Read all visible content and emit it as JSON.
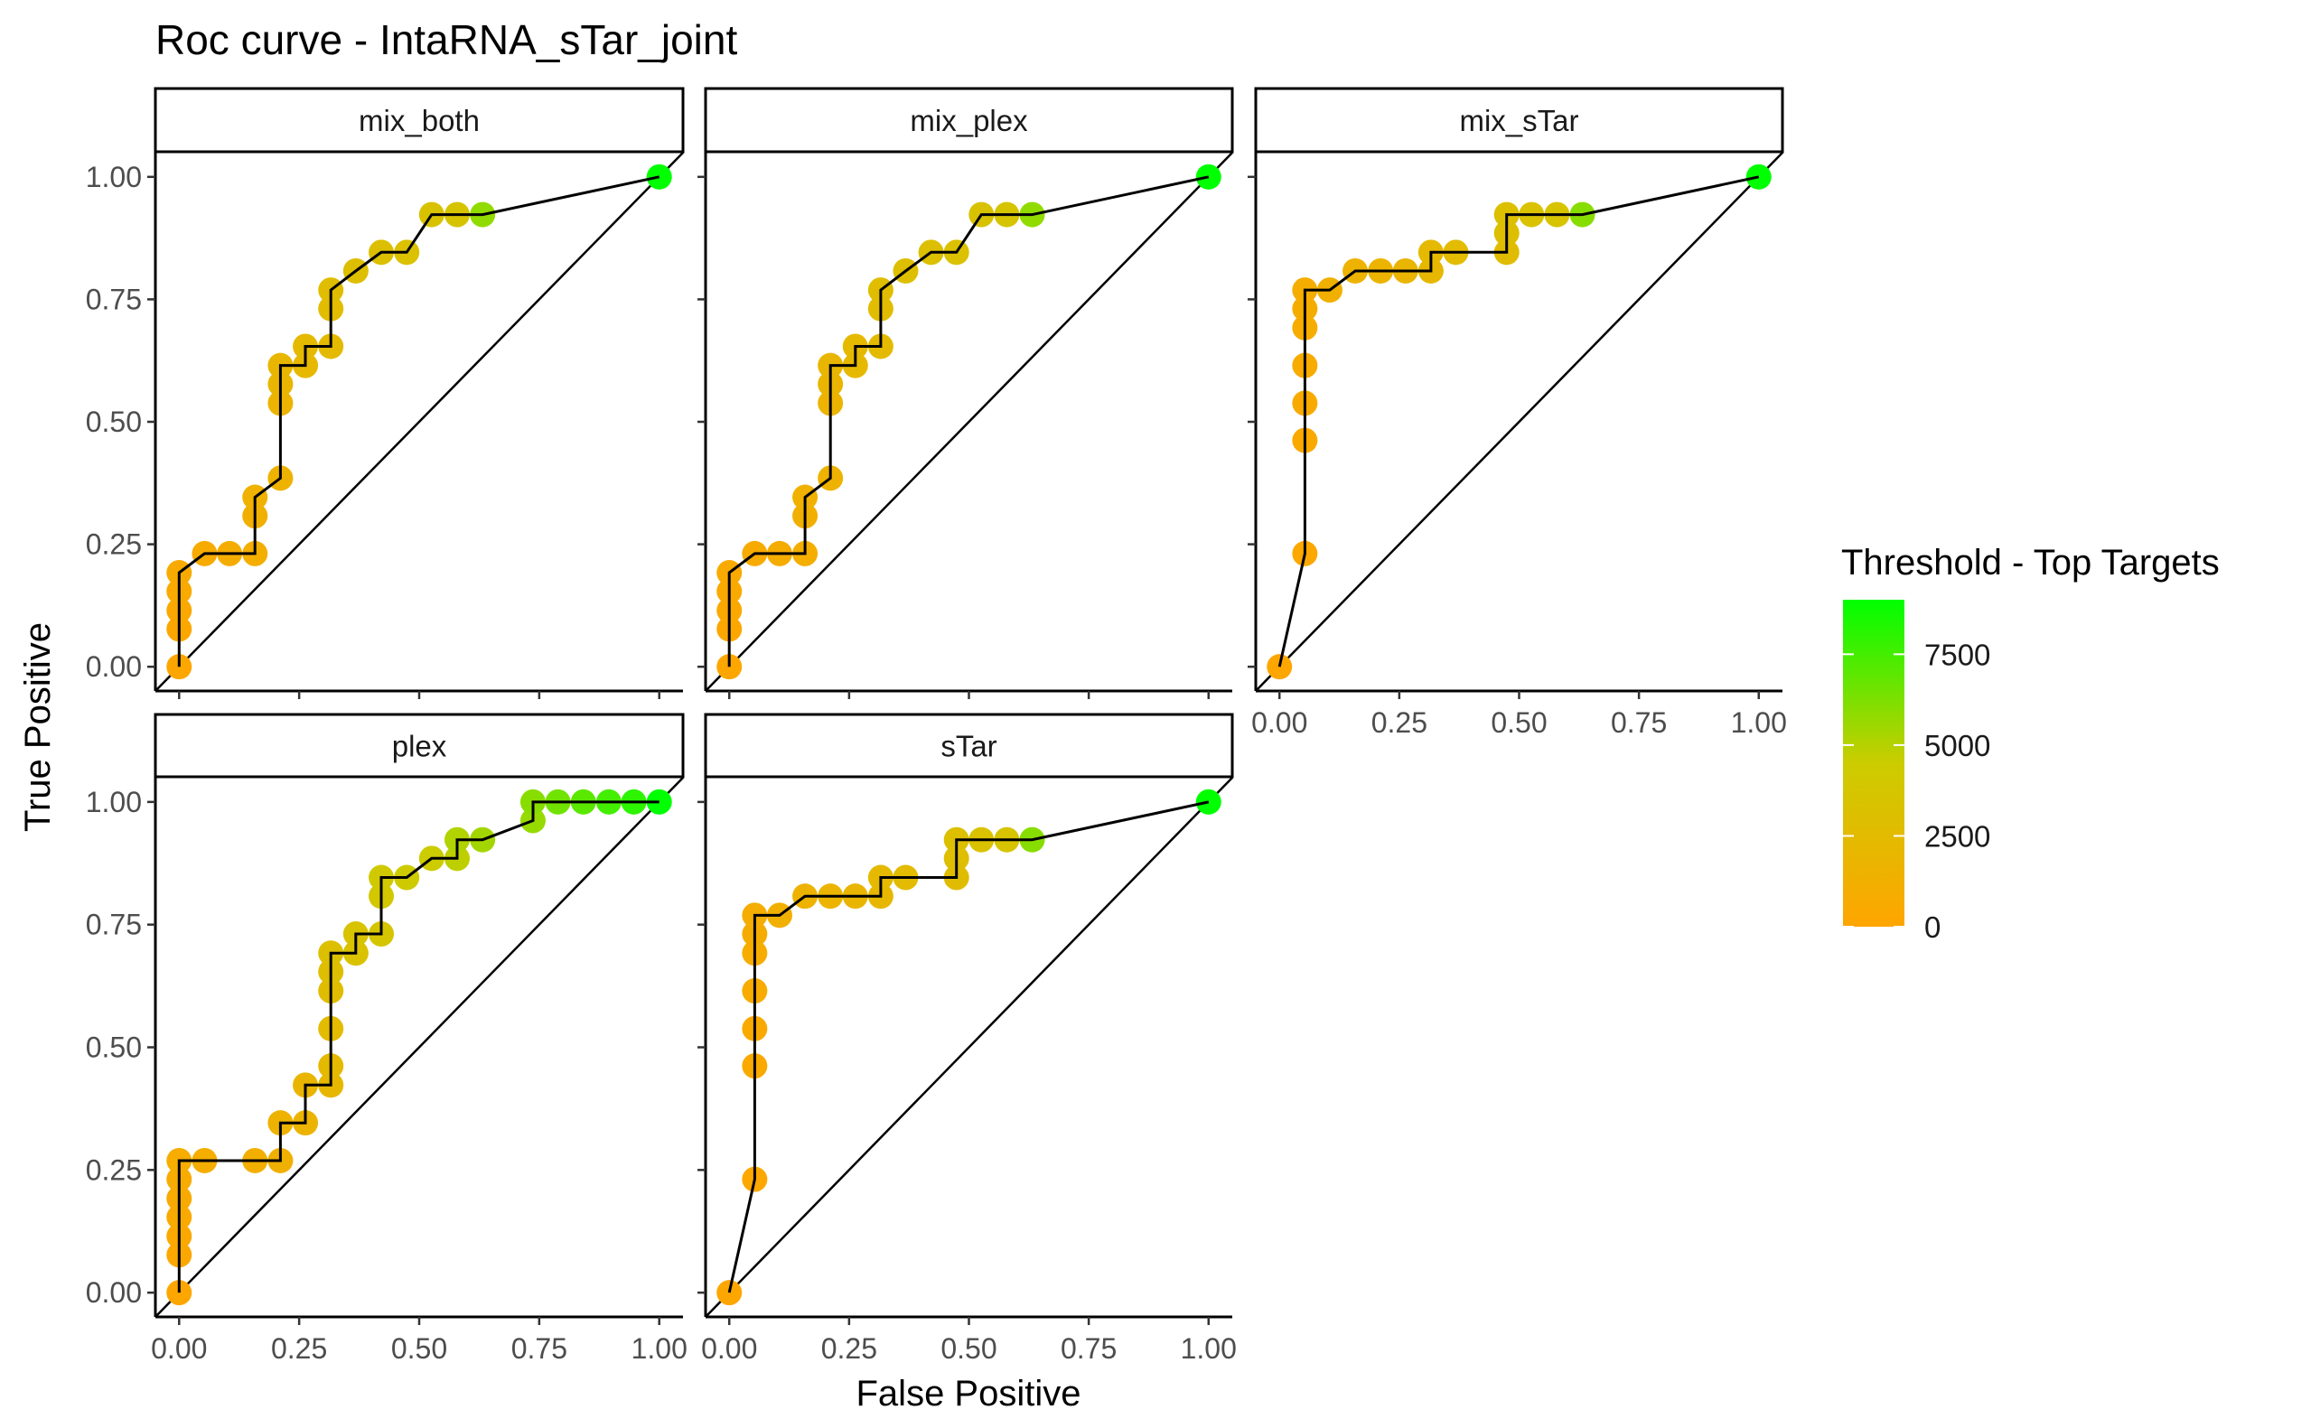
{
  "chart_data": {
    "type": "scatter",
    "title": "Roc curve - IntaRNA_sTar_joint",
    "xlabel": "False Positive",
    "ylabel": "True Positive",
    "xlim": [
      0,
      1
    ],
    "ylim": [
      0,
      1
    ],
    "x_ticks": [
      "0.00",
      "0.25",
      "0.50",
      "0.75",
      "1.00"
    ],
    "y_ticks": [
      "0.00",
      "0.25",
      "0.50",
      "0.75",
      "1.00"
    ],
    "grid": false,
    "legend": {
      "title": "Threshold - Top Targets",
      "position": "right",
      "ticks": [
        "0",
        "2500",
        "5000",
        "7500"
      ],
      "tick_values": [
        0,
        2500,
        5000,
        7500
      ],
      "range": [
        0,
        9000
      ],
      "color_low": "#FFA500",
      "color_mid": "#CCCC00",
      "color_high": "#00FF00"
    },
    "diagonal_reference": true,
    "panels": [
      {
        "name": "mix_both",
        "points": [
          [
            0.0,
            0.0,
            150
          ],
          [
            0.0,
            0.077,
            250
          ],
          [
            0.0,
            0.115,
            350
          ],
          [
            0.0,
            0.154,
            450
          ],
          [
            0.0,
            0.192,
            550
          ],
          [
            0.053,
            0.231,
            700
          ],
          [
            0.105,
            0.231,
            850
          ],
          [
            0.158,
            0.231,
            1000
          ],
          [
            0.158,
            0.308,
            1200
          ],
          [
            0.158,
            0.346,
            1350
          ],
          [
            0.211,
            0.385,
            1500
          ],
          [
            0.211,
            0.538,
            1700
          ],
          [
            0.211,
            0.577,
            1850
          ],
          [
            0.211,
            0.615,
            2000
          ],
          [
            0.263,
            0.615,
            2150
          ],
          [
            0.263,
            0.654,
            2300
          ],
          [
            0.316,
            0.654,
            2450
          ],
          [
            0.316,
            0.731,
            2600
          ],
          [
            0.316,
            0.769,
            2750
          ],
          [
            0.368,
            0.808,
            2900
          ],
          [
            0.421,
            0.846,
            3050
          ],
          [
            0.474,
            0.846,
            3200
          ],
          [
            0.526,
            0.923,
            3400
          ],
          [
            0.579,
            0.923,
            3600
          ],
          [
            0.632,
            0.923,
            5800
          ],
          [
            1.0,
            1.0,
            9000
          ]
        ],
        "path": [
          [
            0,
            0
          ],
          [
            0,
            0.192
          ],
          [
            0.053,
            0.231
          ],
          [
            0.158,
            0.231
          ],
          [
            0.158,
            0.346
          ],
          [
            0.211,
            0.385
          ],
          [
            0.211,
            0.615
          ],
          [
            0.263,
            0.615
          ],
          [
            0.263,
            0.654
          ],
          [
            0.316,
            0.654
          ],
          [
            0.316,
            0.769
          ],
          [
            0.368,
            0.808
          ],
          [
            0.421,
            0.846
          ],
          [
            0.474,
            0.846
          ],
          [
            0.526,
            0.923
          ],
          [
            0.632,
            0.923
          ],
          [
            1.0,
            1.0
          ]
        ]
      },
      {
        "name": "mix_plex",
        "points": [
          [
            0.0,
            0.0,
            150
          ],
          [
            0.0,
            0.077,
            250
          ],
          [
            0.0,
            0.115,
            350
          ],
          [
            0.0,
            0.154,
            450
          ],
          [
            0.0,
            0.192,
            550
          ],
          [
            0.053,
            0.231,
            700
          ],
          [
            0.105,
            0.231,
            850
          ],
          [
            0.158,
            0.231,
            1000
          ],
          [
            0.158,
            0.308,
            1200
          ],
          [
            0.158,
            0.346,
            1350
          ],
          [
            0.211,
            0.385,
            1500
          ],
          [
            0.211,
            0.538,
            1700
          ],
          [
            0.211,
            0.577,
            1850
          ],
          [
            0.211,
            0.615,
            2000
          ],
          [
            0.263,
            0.615,
            2150
          ],
          [
            0.263,
            0.654,
            2300
          ],
          [
            0.316,
            0.654,
            2450
          ],
          [
            0.316,
            0.731,
            2600
          ],
          [
            0.316,
            0.769,
            2750
          ],
          [
            0.368,
            0.808,
            2900
          ],
          [
            0.421,
            0.846,
            3050
          ],
          [
            0.474,
            0.846,
            3200
          ],
          [
            0.526,
            0.923,
            3400
          ],
          [
            0.579,
            0.923,
            3600
          ],
          [
            0.632,
            0.923,
            5800
          ],
          [
            1.0,
            1.0,
            9000
          ]
        ],
        "path": [
          [
            0,
            0
          ],
          [
            0,
            0.192
          ],
          [
            0.053,
            0.231
          ],
          [
            0.158,
            0.231
          ],
          [
            0.158,
            0.346
          ],
          [
            0.211,
            0.385
          ],
          [
            0.211,
            0.615
          ],
          [
            0.263,
            0.615
          ],
          [
            0.263,
            0.654
          ],
          [
            0.316,
            0.654
          ],
          [
            0.316,
            0.769
          ],
          [
            0.368,
            0.808
          ],
          [
            0.421,
            0.846
          ],
          [
            0.474,
            0.846
          ],
          [
            0.526,
            0.923
          ],
          [
            0.632,
            0.923
          ],
          [
            1.0,
            1.0
          ]
        ]
      },
      {
        "name": "mix_sTar",
        "points": [
          [
            0.0,
            0.0,
            100
          ],
          [
            0.053,
            0.231,
            300
          ],
          [
            0.053,
            0.462,
            450
          ],
          [
            0.053,
            0.538,
            550
          ],
          [
            0.053,
            0.615,
            650
          ],
          [
            0.053,
            0.692,
            750
          ],
          [
            0.053,
            0.731,
            850
          ],
          [
            0.053,
            0.769,
            950
          ],
          [
            0.105,
            0.769,
            1200
          ],
          [
            0.158,
            0.808,
            1500
          ],
          [
            0.211,
            0.808,
            1700
          ],
          [
            0.263,
            0.808,
            1900
          ],
          [
            0.316,
            0.808,
            2100
          ],
          [
            0.316,
            0.846,
            2300
          ],
          [
            0.368,
            0.846,
            2500
          ],
          [
            0.474,
            0.846,
            2700
          ],
          [
            0.474,
            0.885,
            2900
          ],
          [
            0.474,
            0.923,
            3100
          ],
          [
            0.526,
            0.923,
            3300
          ],
          [
            0.579,
            0.923,
            3500
          ],
          [
            0.632,
            0.923,
            6000
          ],
          [
            1.0,
            1.0,
            9000
          ]
        ],
        "path": [
          [
            0,
            0
          ],
          [
            0.053,
            0.231
          ],
          [
            0.053,
            0.769
          ],
          [
            0.105,
            0.769
          ],
          [
            0.158,
            0.808
          ],
          [
            0.316,
            0.808
          ],
          [
            0.316,
            0.846
          ],
          [
            0.474,
            0.846
          ],
          [
            0.474,
            0.923
          ],
          [
            0.632,
            0.923
          ],
          [
            1.0,
            1.0
          ]
        ]
      },
      {
        "name": "plex",
        "points": [
          [
            0.0,
            0.0,
            150
          ],
          [
            0.0,
            0.077,
            250
          ],
          [
            0.0,
            0.115,
            350
          ],
          [
            0.0,
            0.154,
            450
          ],
          [
            0.0,
            0.192,
            550
          ],
          [
            0.0,
            0.231,
            650
          ],
          [
            0.0,
            0.269,
            750
          ],
          [
            0.053,
            0.269,
            900
          ],
          [
            0.158,
            0.269,
            1100
          ],
          [
            0.211,
            0.269,
            1300
          ],
          [
            0.211,
            0.346,
            1500
          ],
          [
            0.263,
            0.346,
            1700
          ],
          [
            0.263,
            0.423,
            1900
          ],
          [
            0.316,
            0.423,
            2100
          ],
          [
            0.316,
            0.462,
            2300
          ],
          [
            0.316,
            0.538,
            2500
          ],
          [
            0.316,
            0.615,
            2700
          ],
          [
            0.316,
            0.654,
            2900
          ],
          [
            0.316,
            0.692,
            3100
          ],
          [
            0.368,
            0.692,
            3300
          ],
          [
            0.368,
            0.731,
            3500
          ],
          [
            0.421,
            0.731,
            3700
          ],
          [
            0.421,
            0.808,
            3900
          ],
          [
            0.421,
            0.846,
            4100
          ],
          [
            0.474,
            0.846,
            4300
          ],
          [
            0.526,
            0.885,
            4500
          ],
          [
            0.579,
            0.885,
            4800
          ],
          [
            0.579,
            0.923,
            5100
          ],
          [
            0.632,
            0.923,
            5400
          ],
          [
            0.737,
            0.962,
            5700
          ],
          [
            0.737,
            1.0,
            6000
          ],
          [
            0.789,
            1.0,
            6500
          ],
          [
            0.842,
            1.0,
            7000
          ],
          [
            0.895,
            1.0,
            7500
          ],
          [
            0.947,
            1.0,
            8000
          ],
          [
            1.0,
            1.0,
            9000
          ]
        ],
        "path": [
          [
            0,
            0
          ],
          [
            0,
            0.269
          ],
          [
            0.053,
            0.269
          ],
          [
            0.211,
            0.269
          ],
          [
            0.211,
            0.346
          ],
          [
            0.263,
            0.346
          ],
          [
            0.263,
            0.423
          ],
          [
            0.316,
            0.423
          ],
          [
            0.316,
            0.692
          ],
          [
            0.368,
            0.692
          ],
          [
            0.368,
            0.731
          ],
          [
            0.421,
            0.731
          ],
          [
            0.421,
            0.846
          ],
          [
            0.474,
            0.846
          ],
          [
            0.526,
            0.885
          ],
          [
            0.579,
            0.885
          ],
          [
            0.579,
            0.923
          ],
          [
            0.632,
            0.923
          ],
          [
            0.737,
            0.962
          ],
          [
            0.737,
            1.0
          ],
          [
            1.0,
            1.0
          ]
        ]
      },
      {
        "name": "sTar",
        "points": [
          [
            0.0,
            0.0,
            100
          ],
          [
            0.053,
            0.231,
            300
          ],
          [
            0.053,
            0.462,
            450
          ],
          [
            0.053,
            0.538,
            550
          ],
          [
            0.053,
            0.615,
            650
          ],
          [
            0.053,
            0.692,
            750
          ],
          [
            0.053,
            0.731,
            850
          ],
          [
            0.053,
            0.769,
            950
          ],
          [
            0.105,
            0.769,
            1200
          ],
          [
            0.158,
            0.808,
            1500
          ],
          [
            0.211,
            0.808,
            1700
          ],
          [
            0.263,
            0.808,
            1900
          ],
          [
            0.316,
            0.808,
            2100
          ],
          [
            0.316,
            0.846,
            2300
          ],
          [
            0.368,
            0.846,
            2500
          ],
          [
            0.474,
            0.846,
            2700
          ],
          [
            0.474,
            0.885,
            2900
          ],
          [
            0.474,
            0.923,
            3100
          ],
          [
            0.526,
            0.923,
            3300
          ],
          [
            0.579,
            0.923,
            3500
          ],
          [
            0.632,
            0.923,
            6000
          ],
          [
            1.0,
            1.0,
            9000
          ]
        ],
        "path": [
          [
            0,
            0
          ],
          [
            0.053,
            0.231
          ],
          [
            0.053,
            0.769
          ],
          [
            0.105,
            0.769
          ],
          [
            0.158,
            0.808
          ],
          [
            0.316,
            0.808
          ],
          [
            0.316,
            0.846
          ],
          [
            0.474,
            0.846
          ],
          [
            0.474,
            0.923
          ],
          [
            0.632,
            0.923
          ],
          [
            1.0,
            1.0
          ]
        ]
      }
    ]
  }
}
